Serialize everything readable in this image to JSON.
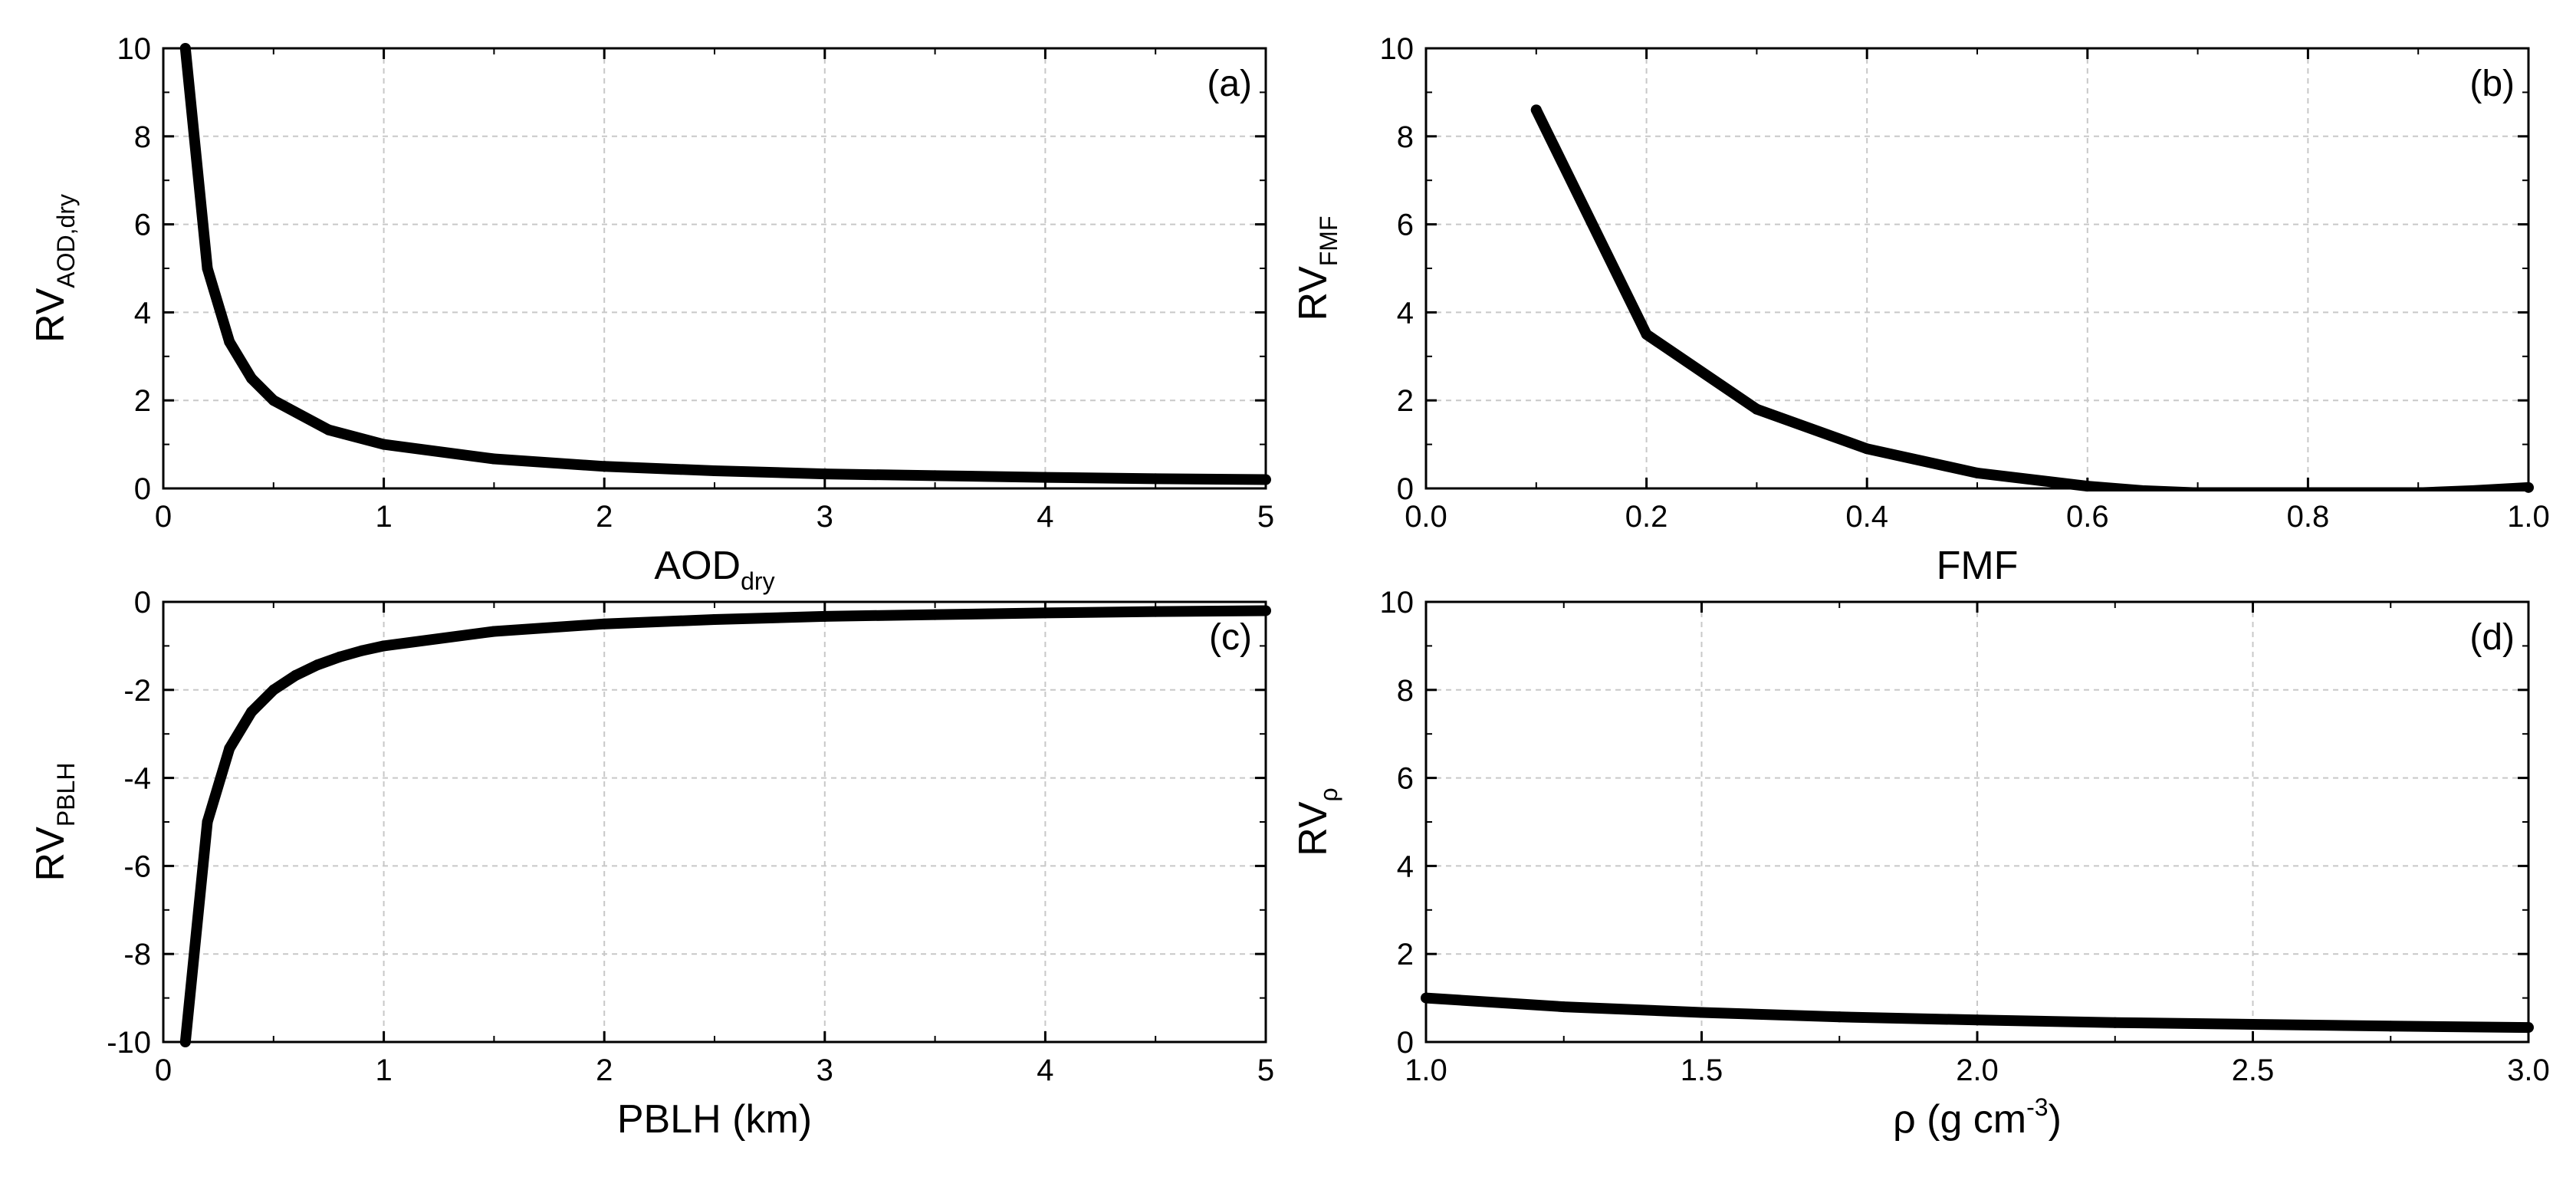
{
  "colors": {
    "line": "#000000",
    "grid": "#c8c8c8",
    "axis": "#000000"
  },
  "chart_data": [
    {
      "id": "a",
      "type": "line",
      "panel_label": "(a)",
      "xlabel": {
        "main": "AOD",
        "sub": "dry",
        "sup": ""
      },
      "ylabel": {
        "main": "RV",
        "sub": "AOD,dry"
      },
      "xlim": [
        0,
        5
      ],
      "ylim": [
        0,
        10
      ],
      "xticks": [
        0,
        1,
        2,
        3,
        4,
        5
      ],
      "xtick_labels": [
        "0",
        "1",
        "2",
        "3",
        "4",
        "5"
      ],
      "yticks": [
        0,
        2,
        4,
        6,
        8,
        10
      ],
      "ytick_labels": [
        "0",
        "2",
        "4",
        "6",
        "8",
        "10"
      ],
      "grid": true,
      "x": [
        0.1,
        0.2,
        0.3,
        0.4,
        0.5,
        0.75,
        1,
        1.5,
        2,
        2.5,
        3,
        3.5,
        4,
        4.5,
        5
      ],
      "y": [
        10,
        5,
        3.33,
        2.5,
        2,
        1.33,
        1,
        0.67,
        0.5,
        0.4,
        0.33,
        0.29,
        0.25,
        0.22,
        0.2
      ]
    },
    {
      "id": "b",
      "type": "line",
      "panel_label": "(b)",
      "xlabel": {
        "main": "FMF",
        "sub": "",
        "sup": ""
      },
      "ylabel": {
        "main": "RV",
        "sub": "FMF"
      },
      "xlim": [
        0,
        1
      ],
      "ylim": [
        0,
        10
      ],
      "xticks": [
        0,
        0.2,
        0.4,
        0.6,
        0.8,
        1
      ],
      "xtick_labels": [
        "0.0",
        "0.2",
        "0.4",
        "0.6",
        "0.8",
        "1.0"
      ],
      "yticks": [
        0,
        2,
        4,
        6,
        8,
        10
      ],
      "ytick_labels": [
        "0",
        "2",
        "4",
        "6",
        "8",
        "10"
      ],
      "grid": true,
      "x": [
        0.1,
        0.2,
        0.3,
        0.4,
        0.5,
        0.6,
        0.65,
        0.7,
        0.75,
        0.8,
        0.85,
        0.9,
        0.95,
        1.0
      ],
      "y": [
        8.6,
        3.5,
        1.8,
        0.9,
        0.35,
        0.05,
        -0.05,
        -0.1,
        -0.12,
        -0.12,
        -0.12,
        -0.1,
        -0.05,
        0.02
      ]
    },
    {
      "id": "c",
      "type": "line",
      "panel_label": "(c)",
      "xlabel": {
        "main": "PBLH  (km)",
        "sub": "",
        "sup": ""
      },
      "ylabel": {
        "main": "RV",
        "sub": "PBLH"
      },
      "xlim": [
        0,
        5
      ],
      "ylim": [
        -10,
        0
      ],
      "xticks": [
        0,
        1,
        2,
        3,
        4,
        5
      ],
      "xtick_labels": [
        "0",
        "1",
        "2",
        "3",
        "4",
        "5"
      ],
      "yticks": [
        -10,
        -8,
        -6,
        -4,
        -2,
        0
      ],
      "ytick_labels": [
        "-10",
        "-8",
        "-6",
        "-4",
        "-2",
        "0"
      ],
      "grid": true,
      "x": [
        0.1,
        0.2,
        0.3,
        0.4,
        0.5,
        0.6,
        0.7,
        0.8,
        0.9,
        1,
        1.5,
        2,
        2.5,
        3,
        3.5,
        4,
        4.5,
        5
      ],
      "y": [
        -10,
        -5,
        -3.33,
        -2.5,
        -2,
        -1.67,
        -1.43,
        -1.25,
        -1.11,
        -1,
        -0.67,
        -0.5,
        -0.4,
        -0.33,
        -0.29,
        -0.25,
        -0.22,
        -0.2
      ]
    },
    {
      "id": "d",
      "type": "line",
      "panel_label": "(d)",
      "xlabel": {
        "main": "ρ  (g cm",
        "sub": "",
        "sup": "-3",
        "tail": ")"
      },
      "ylabel": {
        "main": "RV",
        "sub": "ρ"
      },
      "xlim": [
        1,
        3
      ],
      "ylim": [
        0,
        10
      ],
      "xticks": [
        1,
        1.5,
        2,
        2.5,
        3
      ],
      "xtick_labels": [
        "1.0",
        "1.5",
        "2.0",
        "2.5",
        "3.0"
      ],
      "yticks": [
        0,
        2,
        4,
        6,
        8,
        10
      ],
      "ytick_labels": [
        "0",
        "2",
        "4",
        "6",
        "8",
        "10"
      ],
      "grid": true,
      "x": [
        1,
        1.25,
        1.5,
        1.75,
        2,
        2.25,
        2.5,
        2.75,
        3
      ],
      "y": [
        1,
        0.8,
        0.67,
        0.57,
        0.5,
        0.44,
        0.4,
        0.36,
        0.33
      ]
    }
  ]
}
